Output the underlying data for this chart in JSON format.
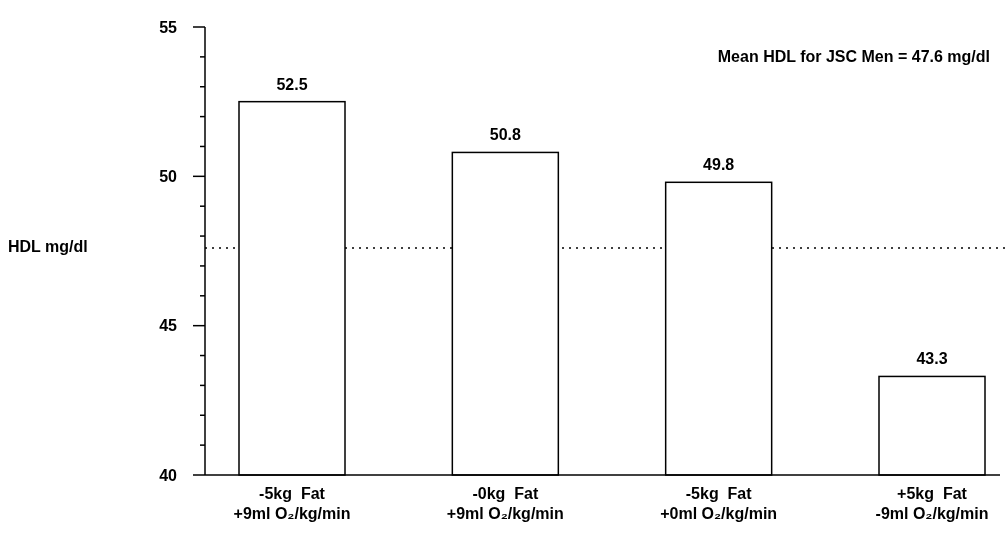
{
  "chart_data": {
    "type": "bar",
    "ylabel": "HDL mg/dl",
    "categories": [
      "-5kg  Fat\n+9ml O₂/kg/min",
      "-0kg  Fat\n+9ml O₂/kg/min",
      "-5kg  Fat\n+0ml O₂/kg/min",
      "+5kg  Fat\n-9ml O₂/kg/min"
    ],
    "values": [
      52.5,
      50.8,
      49.8,
      43.3
    ],
    "color": "#ffffff",
    "data_labels": true,
    "ylim": [
      40,
      55
    ],
    "yticks": [
      40,
      {
        "value": 41,
        "label": null
      },
      {
        "value": 42,
        "label": null
      },
      {
        "value": 43,
        "label": null
      },
      {
        "value": 44,
        "label": null
      },
      45,
      {
        "value": 46,
        "label": null
      },
      {
        "value": 47,
        "label": null
      },
      {
        "value": 48,
        "label": null
      },
      {
        "value": 49,
        "label": null
      },
      50,
      {
        "value": 51,
        "label": null
      },
      {
        "value": 52,
        "label": null
      },
      {
        "value": 53,
        "label": null
      },
      {
        "value": 54,
        "label": null
      },
      55
    ],
    "ref_lines": [
      {
        "axis": "y",
        "value": 47.6,
        "label": "Mean HDL for JSC Men = 47.6 mg/dl",
        "line_style": "dotted"
      }
    ],
    "grid": false
  }
}
